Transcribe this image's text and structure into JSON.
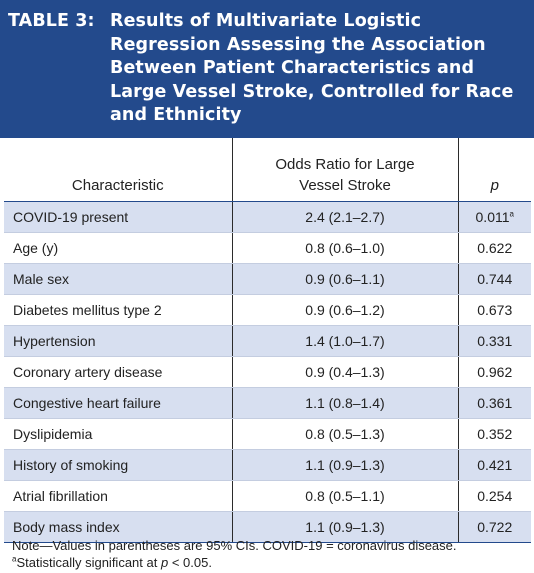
{
  "title": {
    "label": "TABLE 3:",
    "text": "Results of Multivariate Logistic Regression Assessing the Association Between Patient Characteristics and Large Vessel Stroke, Controlled for Race and Ethnicity"
  },
  "table": {
    "headers": {
      "characteristic": "Characteristic",
      "odds_ratio": "Odds Ratio for Large Vessel Stroke",
      "p": "p"
    },
    "rows": [
      {
        "characteristic": "COVID-19 present",
        "odds_ratio": "2.4 (2.1–2.7)",
        "p": "0.011",
        "p_mark": "a"
      },
      {
        "characteristic": "Age (y)",
        "odds_ratio": "0.8 (0.6–1.0)",
        "p": "0.622",
        "p_mark": ""
      },
      {
        "characteristic": "Male sex",
        "odds_ratio": "0.9 (0.6–1.1)",
        "p": "0.744",
        "p_mark": ""
      },
      {
        "characteristic": "Diabetes mellitus type 2",
        "odds_ratio": "0.9 (0.6–1.2)",
        "p": "0.673",
        "p_mark": ""
      },
      {
        "characteristic": "Hypertension",
        "odds_ratio": "1.4 (1.0–1.7)",
        "p": "0.331",
        "p_mark": ""
      },
      {
        "characteristic": "Coronary artery disease",
        "odds_ratio": "0.9 (0.4–1.3)",
        "p": "0.962",
        "p_mark": ""
      },
      {
        "characteristic": "Congestive heart failure",
        "odds_ratio": "1.1 (0.8–1.4)",
        "p": "0.361",
        "p_mark": ""
      },
      {
        "characteristic": "Dyslipidemia",
        "odds_ratio": "0.8 (0.5–1.3)",
        "p": "0.352",
        "p_mark": ""
      },
      {
        "characteristic": "History of smoking",
        "odds_ratio": "1.1 (0.9–1.3)",
        "p": "0.421",
        "p_mark": ""
      },
      {
        "characteristic": "Atrial fibrillation",
        "odds_ratio": "0.8 (0.5–1.1)",
        "p": "0.254",
        "p_mark": ""
      },
      {
        "characteristic": "Body mass index",
        "odds_ratio": "1.1 (0.9–1.3)",
        "p": "0.722",
        "p_mark": ""
      }
    ]
  },
  "notes": {
    "line1": "Note—Values in parentheses are 95% CIs. COVID-19 = coronavirus disease.",
    "line2_mark": "a",
    "line2_text": "Statistically significant at ",
    "line2_p": "p",
    "line2_tail": " < 0.05."
  },
  "colors": {
    "title_background": "#234a8c",
    "title_text": "#ffffff",
    "shaded_row": "#d7dff0",
    "rule": "#234a8c"
  }
}
